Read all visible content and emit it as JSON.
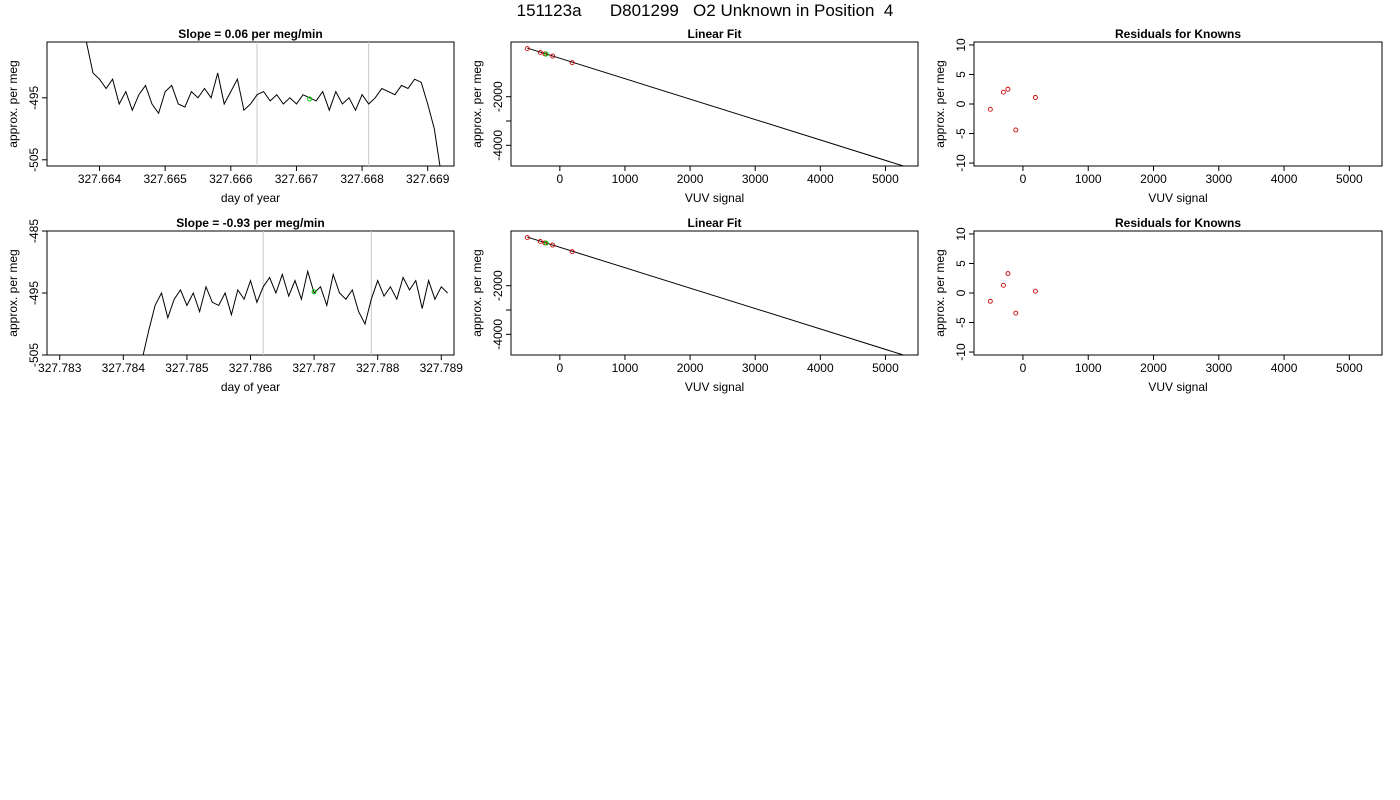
{
  "main_title": "151123a      D801299   O2 Unknown in Position  4",
  "chart_data": [
    {
      "type": "line",
      "title": "Slope =  0.06  per meg/min",
      "xlabel": "day of year",
      "ylabel": "approx. per meg",
      "xlim": [
        327.6632,
        327.6694
      ],
      "ylim": [
        -506,
        -486
      ],
      "xticks": [
        327.664,
        327.665,
        327.666,
        327.667,
        327.668,
        327.669
      ],
      "xtick_labels": [
        "327.664",
        "327.665",
        "327.666",
        "327.667",
        "327.668",
        "327.669"
      ],
      "yticks": [
        -495,
        -505
      ],
      "ytick_labels": [
        "-495",
        "-505"
      ],
      "vlines": [
        327.6664,
        327.6681
      ],
      "series": [
        {
          "x": [
            327.6638,
            327.6639,
            327.664,
            327.6641,
            327.6642,
            327.6643,
            327.6644,
            327.6645,
            327.6646,
            327.6647,
            327.6648,
            327.6649,
            327.665,
            327.6651,
            327.6652,
            327.6653,
            327.6654,
            327.6655,
            327.6656,
            327.6657,
            327.6658,
            327.6659,
            327.666,
            327.6661,
            327.6662,
            327.6663,
            327.6664,
            327.6665,
            327.6666,
            327.6667,
            327.6668,
            327.6669,
            327.667,
            327.6671,
            327.6672,
            327.6673,
            327.6674,
            327.6675,
            327.6676,
            327.6677,
            327.6678,
            327.6679,
            327.668,
            327.6681,
            327.6682,
            327.6683,
            327.6684,
            327.6685,
            327.6686,
            327.6687,
            327.6688,
            327.6689,
            327.669,
            327.6691,
            327.6692
          ],
          "y": [
            -486,
            -491,
            -492,
            -493.5,
            -492,
            -496,
            -494,
            -497,
            -494.5,
            -493,
            -496,
            -497.5,
            -494,
            -493,
            -496,
            -496.5,
            -494,
            -495,
            -493.5,
            -495,
            -491,
            -496,
            -494,
            -492,
            -497,
            -496,
            -494.5,
            -494,
            -495.5,
            -494.5,
            -496,
            -495,
            -496,
            -494.5,
            -495,
            -495.5,
            -494,
            -497,
            -494,
            -496,
            -495,
            -497,
            -494.5,
            -496,
            -495,
            -493.5,
            -494,
            -494.5,
            -493,
            -493.5,
            -492,
            -492.5,
            -496,
            -500,
            -507
          ]
        }
      ],
      "highlight_points": [
        {
          "x": 327.6672,
          "y": -495.2,
          "color": "#00cc00"
        }
      ]
    },
    {
      "type": "scatter",
      "title": "Linear Fit",
      "xlabel": "VUV signal",
      "ylabel": "approx. per meg",
      "xlim": [
        -750,
        5500
      ],
      "ylim": [
        -4850,
        250
      ],
      "xticks": [
        0,
        1000,
        2000,
        3000,
        4000,
        5000
      ],
      "xtick_labels": [
        "0",
        "1000",
        "2000",
        "3000",
        "4000",
        "5000"
      ],
      "yticks": [
        -2000,
        -3000,
        -4000
      ],
      "ytick_labels": [
        "-2000",
        "",
        "-4000"
      ],
      "fit_line": {
        "x": [
          -500,
          5300
        ],
        "y": [
          0,
          -4870
        ]
      },
      "points": {
        "x": [
          -500,
          -300,
          -230,
          -110,
          190
        ],
        "y": [
          -20,
          -180,
          -240,
          -330,
          -600
        ],
        "color": "#cc0000"
      },
      "highlight_points": [
        {
          "x": -210,
          "y": -250,
          "color": "#00cc00"
        }
      ]
    },
    {
      "type": "scatter",
      "title": "Residuals for Knowns",
      "xlabel": "VUV signal",
      "ylabel": "approx. per meg",
      "xlim": [
        -750,
        5500
      ],
      "ylim": [
        -10.5,
        10.5
      ],
      "xticks": [
        0,
        1000,
        2000,
        3000,
        4000,
        5000
      ],
      "xtick_labels": [
        "0",
        "1000",
        "2000",
        "3000",
        "4000",
        "5000"
      ],
      "yticks": [
        10,
        5,
        0,
        -5,
        -10
      ],
      "ytick_labels": [
        "10",
        "5",
        "0",
        "-5",
        "-10"
      ],
      "points": {
        "x": [
          -500,
          -300,
          -230,
          -110,
          190
        ],
        "y": [
          -0.9,
          2.0,
          2.5,
          -4.4,
          1.1
        ],
        "color": "#cc0000"
      }
    },
    {
      "type": "line",
      "title": "Slope =  -0.93  per meg/min",
      "xlabel": "day of year",
      "ylabel": "approx. per meg",
      "xlim": [
        327.7828,
        327.7892
      ],
      "ylim": [
        -505,
        -485
      ],
      "xticks": [
        327.783,
        327.784,
        327.785,
        327.786,
        327.787,
        327.788,
        327.789
      ],
      "xtick_labels": [
        "327.783",
        "327.784",
        "327.785",
        "327.786",
        "327.787",
        "327.788",
        "327.789"
      ],
      "yticks": [
        -485,
        -495,
        -505
      ],
      "ytick_labels": [
        "-485",
        "-495",
        "-505"
      ],
      "vlines": [
        327.7862,
        327.7879
      ],
      "series": [
        {
          "x": [
            327.7843,
            327.7844,
            327.7845,
            327.7846,
            327.7847,
            327.7848,
            327.7849,
            327.785,
            327.7851,
            327.7852,
            327.7853,
            327.7854,
            327.7855,
            327.7856,
            327.7857,
            327.7858,
            327.7859,
            327.786,
            327.7861,
            327.7862,
            327.7863,
            327.7864,
            327.7865,
            327.7866,
            327.7867,
            327.7868,
            327.7869,
            327.787,
            327.7871,
            327.7872,
            327.7873,
            327.7874,
            327.7875,
            327.7876,
            327.7877,
            327.7878,
            327.7879,
            327.788,
            327.7881,
            327.7882,
            327.7883,
            327.7884,
            327.7885,
            327.7886,
            327.7887,
            327.7888,
            327.7889,
            327.789,
            327.7891
          ],
          "y": [
            -505.5,
            -501,
            -497,
            -495,
            -499,
            -496,
            -494.5,
            -497,
            -495,
            -498,
            -494,
            -496.5,
            -497,
            -495,
            -498.5,
            -494.5,
            -496,
            -493,
            -496.5,
            -494,
            -492.5,
            -495,
            -492,
            -495.5,
            -493,
            -496,
            -491.5,
            -495,
            -494,
            -497,
            -492,
            -495,
            -496,
            -494.5,
            -498,
            -500,
            -496,
            -493,
            -495.5,
            -494,
            -496,
            -492.5,
            -494.5,
            -493,
            -497.5,
            -493,
            -496,
            -494,
            -495
          ]
        }
      ],
      "highlight_points": [
        {
          "x": 327.787,
          "y": -494.8,
          "color": "#00cc00"
        }
      ]
    },
    {
      "type": "scatter",
      "title": "Linear Fit",
      "xlabel": "VUV signal",
      "ylabel": "approx. per meg",
      "xlim": [
        -750,
        5500
      ],
      "ylim": [
        -4850,
        250
      ],
      "xticks": [
        0,
        1000,
        2000,
        3000,
        4000,
        5000
      ],
      "xtick_labels": [
        "0",
        "1000",
        "2000",
        "3000",
        "4000",
        "5000"
      ],
      "yticks": [
        -2000,
        -3000,
        -4000
      ],
      "ytick_labels": [
        "-2000",
        "",
        "-4000"
      ],
      "fit_line": {
        "x": [
          -500,
          5300
        ],
        "y": [
          0,
          -4870
        ]
      },
      "points": {
        "x": [
          -500,
          -300,
          -230,
          -110,
          190
        ],
        "y": [
          -20,
          -180,
          -240,
          -330,
          -600
        ],
        "color": "#cc0000"
      },
      "highlight_points": [
        {
          "x": -210,
          "y": -250,
          "color": "#00cc00"
        }
      ]
    },
    {
      "type": "scatter",
      "title": "Residuals for Knowns",
      "xlabel": "VUV signal",
      "ylabel": "approx. per meg",
      "xlim": [
        -750,
        5500
      ],
      "ylim": [
        -10.5,
        10.5
      ],
      "xticks": [
        0,
        1000,
        2000,
        3000,
        4000,
        5000
      ],
      "xtick_labels": [
        "0",
        "1000",
        "2000",
        "3000",
        "4000",
        "5000"
      ],
      "yticks": [
        10,
        5,
        0,
        -5,
        -10
      ],
      "ytick_labels": [
        "10",
        "5",
        "0",
        "-5",
        "-10"
      ],
      "points": {
        "x": [
          -500,
          -300,
          -230,
          -110,
          190
        ],
        "y": [
          -1.4,
          1.3,
          3.3,
          -3.4,
          0.3
        ],
        "color": "#cc0000"
      }
    }
  ]
}
